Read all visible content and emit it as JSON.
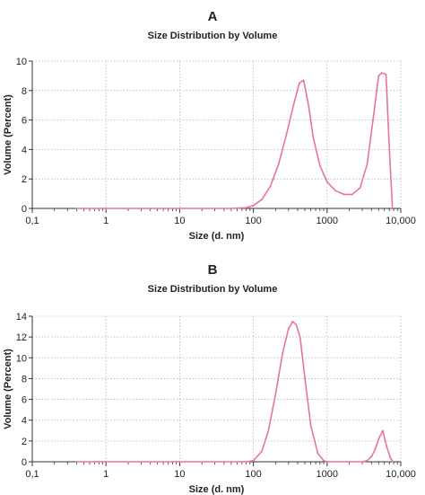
{
  "colors": {
    "series": "#e8749a",
    "grid": "#b5b5b5",
    "axis": "#333333"
  },
  "chart_data": [
    {
      "type": "line",
      "panel_label": "A",
      "title": "Size Distribution by Volume",
      "xlabel": "Size (d. nm)",
      "ylabel": "Volume (Percent)",
      "xscale": "log",
      "xlim": [
        0.1,
        10000
      ],
      "ylim": [
        0,
        10
      ],
      "xticks": [
        0.1,
        1,
        10,
        100,
        1000,
        10000
      ],
      "xtick_labels": [
        "0,1",
        "1",
        "10",
        "100",
        "1000",
        "10,000"
      ],
      "yticks": [
        0,
        2,
        4,
        6,
        8,
        10
      ],
      "ytick_labels": [
        "0",
        "2",
        "4",
        "6",
        "8",
        "10"
      ],
      "grid": true,
      "series": [
        {
          "x": [
            0.4,
            1,
            10,
            50,
            80,
            100,
            130,
            170,
            220,
            280,
            350,
            420,
            480,
            560,
            650,
            800,
            1000,
            1300,
            1700,
            2200,
            2800,
            3500,
            4200,
            5000,
            5500,
            6300,
            7000,
            7700
          ],
          "y": [
            0,
            0,
            0,
            0,
            0.05,
            0.2,
            0.6,
            1.5,
            3.0,
            5.0,
            7.0,
            8.5,
            8.7,
            7.0,
            4.8,
            2.9,
            1.8,
            1.2,
            0.95,
            0.95,
            1.4,
            3.0,
            6.0,
            9.0,
            9.2,
            9.1,
            4.0,
            0
          ]
        }
      ]
    },
    {
      "type": "line",
      "panel_label": "B",
      "title": "Size Distribution by Volume",
      "xlabel": "Size (d. nm)",
      "ylabel": "Volume (Percent)",
      "xscale": "log",
      "xlim": [
        0.1,
        10000
      ],
      "ylim": [
        0,
        14
      ],
      "xticks": [
        0.1,
        1,
        10,
        100,
        1000,
        10000
      ],
      "xtick_labels": [
        "0,1",
        "1",
        "10",
        "100",
        "1000",
        "10,000"
      ],
      "yticks": [
        0,
        2,
        4,
        6,
        8,
        10,
        12,
        14
      ],
      "ytick_labels": [
        "0",
        "2",
        "4",
        "6",
        "8",
        "10",
        "12",
        "14"
      ],
      "grid": true,
      "series": [
        {
          "x": [
            0.4,
            1,
            10,
            50,
            80,
            100,
            130,
            160,
            200,
            250,
            300,
            340,
            380,
            430,
            500,
            600,
            750,
            900,
            1000,
            2000,
            3000,
            3500,
            4000,
            4500,
            5000,
            5700,
            6400,
            7200,
            7800
          ],
          "y": [
            0,
            0,
            0,
            0,
            0,
            0.1,
            1.0,
            3.0,
            6.5,
            10.5,
            12.8,
            13.5,
            13.2,
            12.0,
            8.0,
            3.5,
            0.8,
            0.1,
            0,
            0,
            0,
            0.1,
            0.5,
            1.2,
            2.2,
            3.0,
            1.5,
            0.4,
            0
          ]
        }
      ]
    }
  ]
}
